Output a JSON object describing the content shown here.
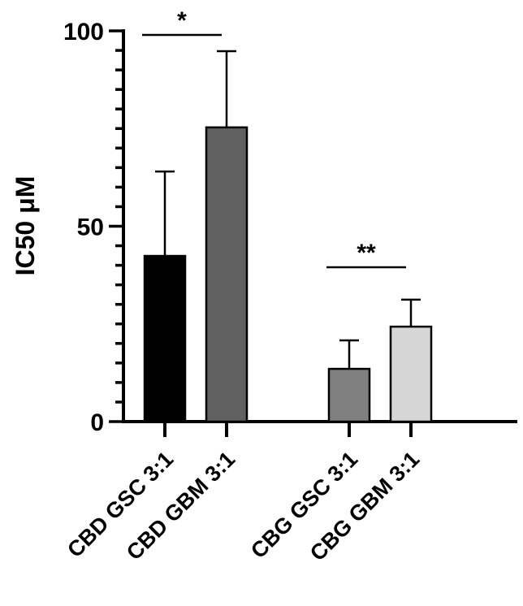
{
  "chart_data": {
    "type": "bar",
    "title": "",
    "xlabel": "",
    "ylabel": "IC50 μM",
    "ylim": [
      0,
      100
    ],
    "yticks_major": [
      0,
      50,
      100
    ],
    "yticks_minor_step": 5,
    "grid": false,
    "legend": null,
    "categories": [
      "CBD GSC 3:1",
      "CBD GBM 3:1",
      "CBG GSC 3:1",
      "CBG GBM 3:1"
    ],
    "values": [
      42.4,
      75.3,
      13.5,
      24.3
    ],
    "error_upper": [
      64.0,
      94.8,
      20.8,
      31.2
    ],
    "colors": [
      "#000000",
      "#606060",
      "#808080",
      "#d6d6d6"
    ],
    "significance": [
      {
        "between": [
          0,
          1
        ],
        "label": "*"
      },
      {
        "between": [
          2,
          3
        ],
        "label": "**"
      }
    ]
  }
}
